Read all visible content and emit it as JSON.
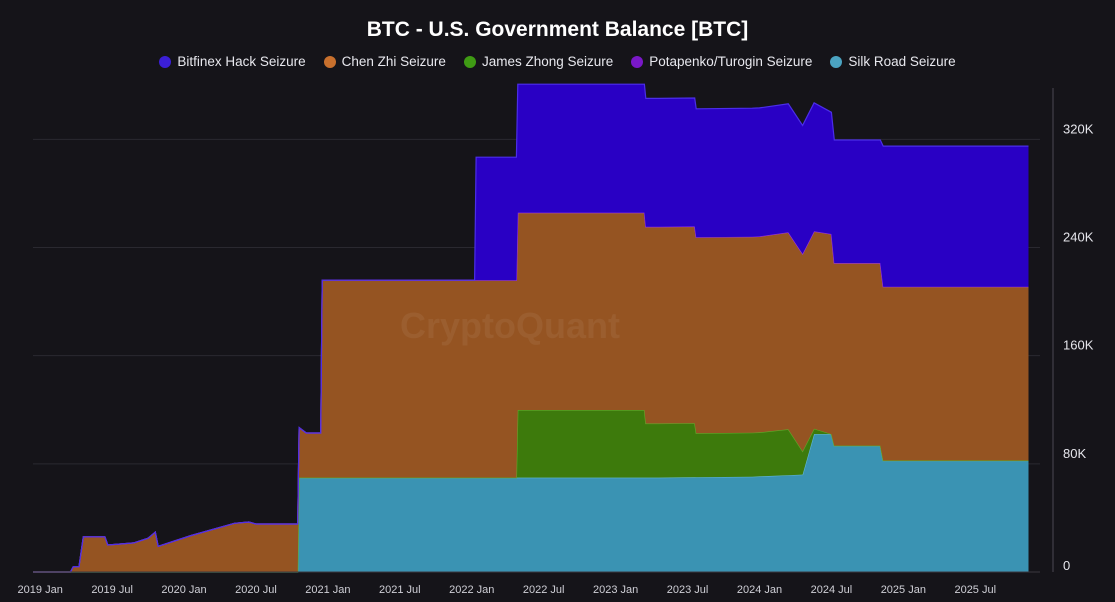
{
  "chart_data": {
    "type": "area",
    "stacked": true,
    "title": "BTC - U.S. Government Balance [BTC]",
    "watermark": "CryptoQuant",
    "xlabel": "",
    "ylabel": "",
    "xlim": [
      2018.95,
      2025.95
    ],
    "ylim": [
      0,
      355000
    ],
    "grid": true,
    "legend_position": "top",
    "x_ticks": [
      {
        "x": 2019.0,
        "label": "2019 Jan"
      },
      {
        "x": 2019.5,
        "label": "2019 Jul"
      },
      {
        "x": 2020.0,
        "label": "2020 Jan"
      },
      {
        "x": 2020.5,
        "label": "2020 Jul"
      },
      {
        "x": 2021.0,
        "label": "2021 Jan"
      },
      {
        "x": 2021.5,
        "label": "2021 Jul"
      },
      {
        "x": 2022.0,
        "label": "2022 Jan"
      },
      {
        "x": 2022.5,
        "label": "2022 Jul"
      },
      {
        "x": 2023.0,
        "label": "2023 Jan"
      },
      {
        "x": 2023.5,
        "label": "2023 Jul"
      },
      {
        "x": 2024.0,
        "label": "2024 Jan"
      },
      {
        "x": 2024.5,
        "label": "2024 Jul"
      },
      {
        "x": 2025.0,
        "label": "2025 Jan"
      },
      {
        "x": 2025.5,
        "label": "2025 Jul"
      }
    ],
    "y_ticks": [
      {
        "y": 0,
        "label": "0"
      },
      {
        "y": 80000,
        "label": "80K"
      },
      {
        "y": 160000,
        "label": "160K"
      },
      {
        "y": 240000,
        "label": "240K"
      },
      {
        "y": 320000,
        "label": "320K"
      }
    ],
    "series": [
      {
        "name": "Silk Road Seizure",
        "color": "#3a93b3",
        "line_color": "#62b8d8",
        "points": [
          [
            2018.95,
            0
          ],
          [
            2020.79,
            0
          ],
          [
            2020.8,
            69800
          ],
          [
            2023.3,
            69800
          ],
          [
            2023.95,
            70500
          ],
          [
            2024.3,
            72000
          ],
          [
            2024.38,
            102000
          ],
          [
            2024.5,
            102000
          ],
          [
            2024.52,
            93500
          ],
          [
            2024.84,
            93500
          ],
          [
            2024.86,
            82500
          ],
          [
            2025.87,
            82500
          ]
        ]
      },
      {
        "name": "James Zhong Seizure",
        "color": "#3d7a0c",
        "line_color": "#5faa2a",
        "points": [
          [
            2018.95,
            0
          ],
          [
            2022.31,
            0
          ],
          [
            2022.32,
            50000
          ],
          [
            2022.99,
            50000
          ],
          [
            2023.2,
            50000
          ],
          [
            2023.21,
            40000
          ],
          [
            2023.55,
            40000
          ],
          [
            2023.56,
            32500
          ],
          [
            2024.0,
            32500
          ],
          [
            2024.2,
            34000
          ],
          [
            2024.38,
            4000
          ],
          [
            2024.5,
            0
          ],
          [
            2025.87,
            0
          ]
        ]
      },
      {
        "name": "Chen Zhi Seizure",
        "color": "#955422",
        "line_color": "#d98a45",
        "points": [
          [
            2018.95,
            0
          ],
          [
            2019.21,
            0
          ],
          [
            2019.23,
            4000
          ],
          [
            2019.27,
            4000
          ],
          [
            2019.3,
            26000
          ],
          [
            2019.45,
            26000
          ],
          [
            2019.47,
            20000
          ],
          [
            2019.65,
            21500
          ],
          [
            2019.75,
            25000
          ],
          [
            2019.8,
            29500
          ],
          [
            2019.82,
            19000
          ],
          [
            2020.05,
            27000
          ],
          [
            2020.35,
            36000
          ],
          [
            2020.45,
            37000
          ],
          [
            2020.5,
            35500
          ],
          [
            2020.79,
            35500
          ],
          [
            2020.8,
            37000
          ],
          [
            2020.85,
            33000
          ],
          [
            2020.95,
            33000
          ],
          [
            2020.96,
            146000
          ],
          [
            2021.5,
            146000
          ],
          [
            2022.02,
            146000
          ],
          [
            2022.31,
            146000
          ],
          [
            2022.32,
            146000
          ],
          [
            2022.99,
            146000
          ],
          [
            2023.2,
            146000
          ],
          [
            2023.21,
            145500
          ],
          [
            2023.55,
            145500
          ],
          [
            2023.56,
            145000
          ],
          [
            2024.0,
            145000
          ],
          [
            2024.3,
            146000
          ],
          [
            2024.38,
            146000
          ],
          [
            2024.5,
            148000
          ],
          [
            2024.52,
            135000
          ],
          [
            2024.84,
            135000
          ],
          [
            2024.86,
            128500
          ],
          [
            2025.87,
            128500
          ]
        ]
      },
      {
        "name": "Potapenko/Turogin Seizure",
        "color": "#6a0fc4",
        "line_color": "#8a2be2",
        "points": [
          [
            2018.95,
            0
          ],
          [
            2025.87,
            0
          ]
        ]
      },
      {
        "name": "Bitfinex Hack Seizure",
        "color": "#2900c4",
        "line_color": "#4b2ee8",
        "points": [
          [
            2018.95,
            0
          ],
          [
            2022.02,
            0
          ],
          [
            2022.03,
            91000
          ],
          [
            2022.31,
            91000
          ],
          [
            2022.32,
            95000
          ],
          [
            2022.99,
            95000
          ],
          [
            2023.2,
            95000
          ],
          [
            2023.21,
            95000
          ],
          [
            2023.55,
            95000
          ],
          [
            2023.56,
            95000
          ],
          [
            2024.0,
            95000
          ],
          [
            2024.3,
            95000
          ],
          [
            2024.38,
            95000
          ],
          [
            2024.5,
            90000
          ],
          [
            2024.52,
            91000
          ],
          [
            2024.84,
            91000
          ],
          [
            2024.86,
            104000
          ],
          [
            2025.87,
            104000
          ]
        ]
      }
    ],
    "legend": [
      {
        "name": "Bitfinex Hack Seizure",
        "color": "#3b1fd6"
      },
      {
        "name": "Chen Zhi Seizure",
        "color": "#c8702d"
      },
      {
        "name": "James Zhong Seizure",
        "color": "#3f9b14"
      },
      {
        "name": "Potapenko/Turogin Seizure",
        "color": "#7a18c8"
      },
      {
        "name": "Silk Road Seizure",
        "color": "#4ba3c1"
      }
    ]
  }
}
